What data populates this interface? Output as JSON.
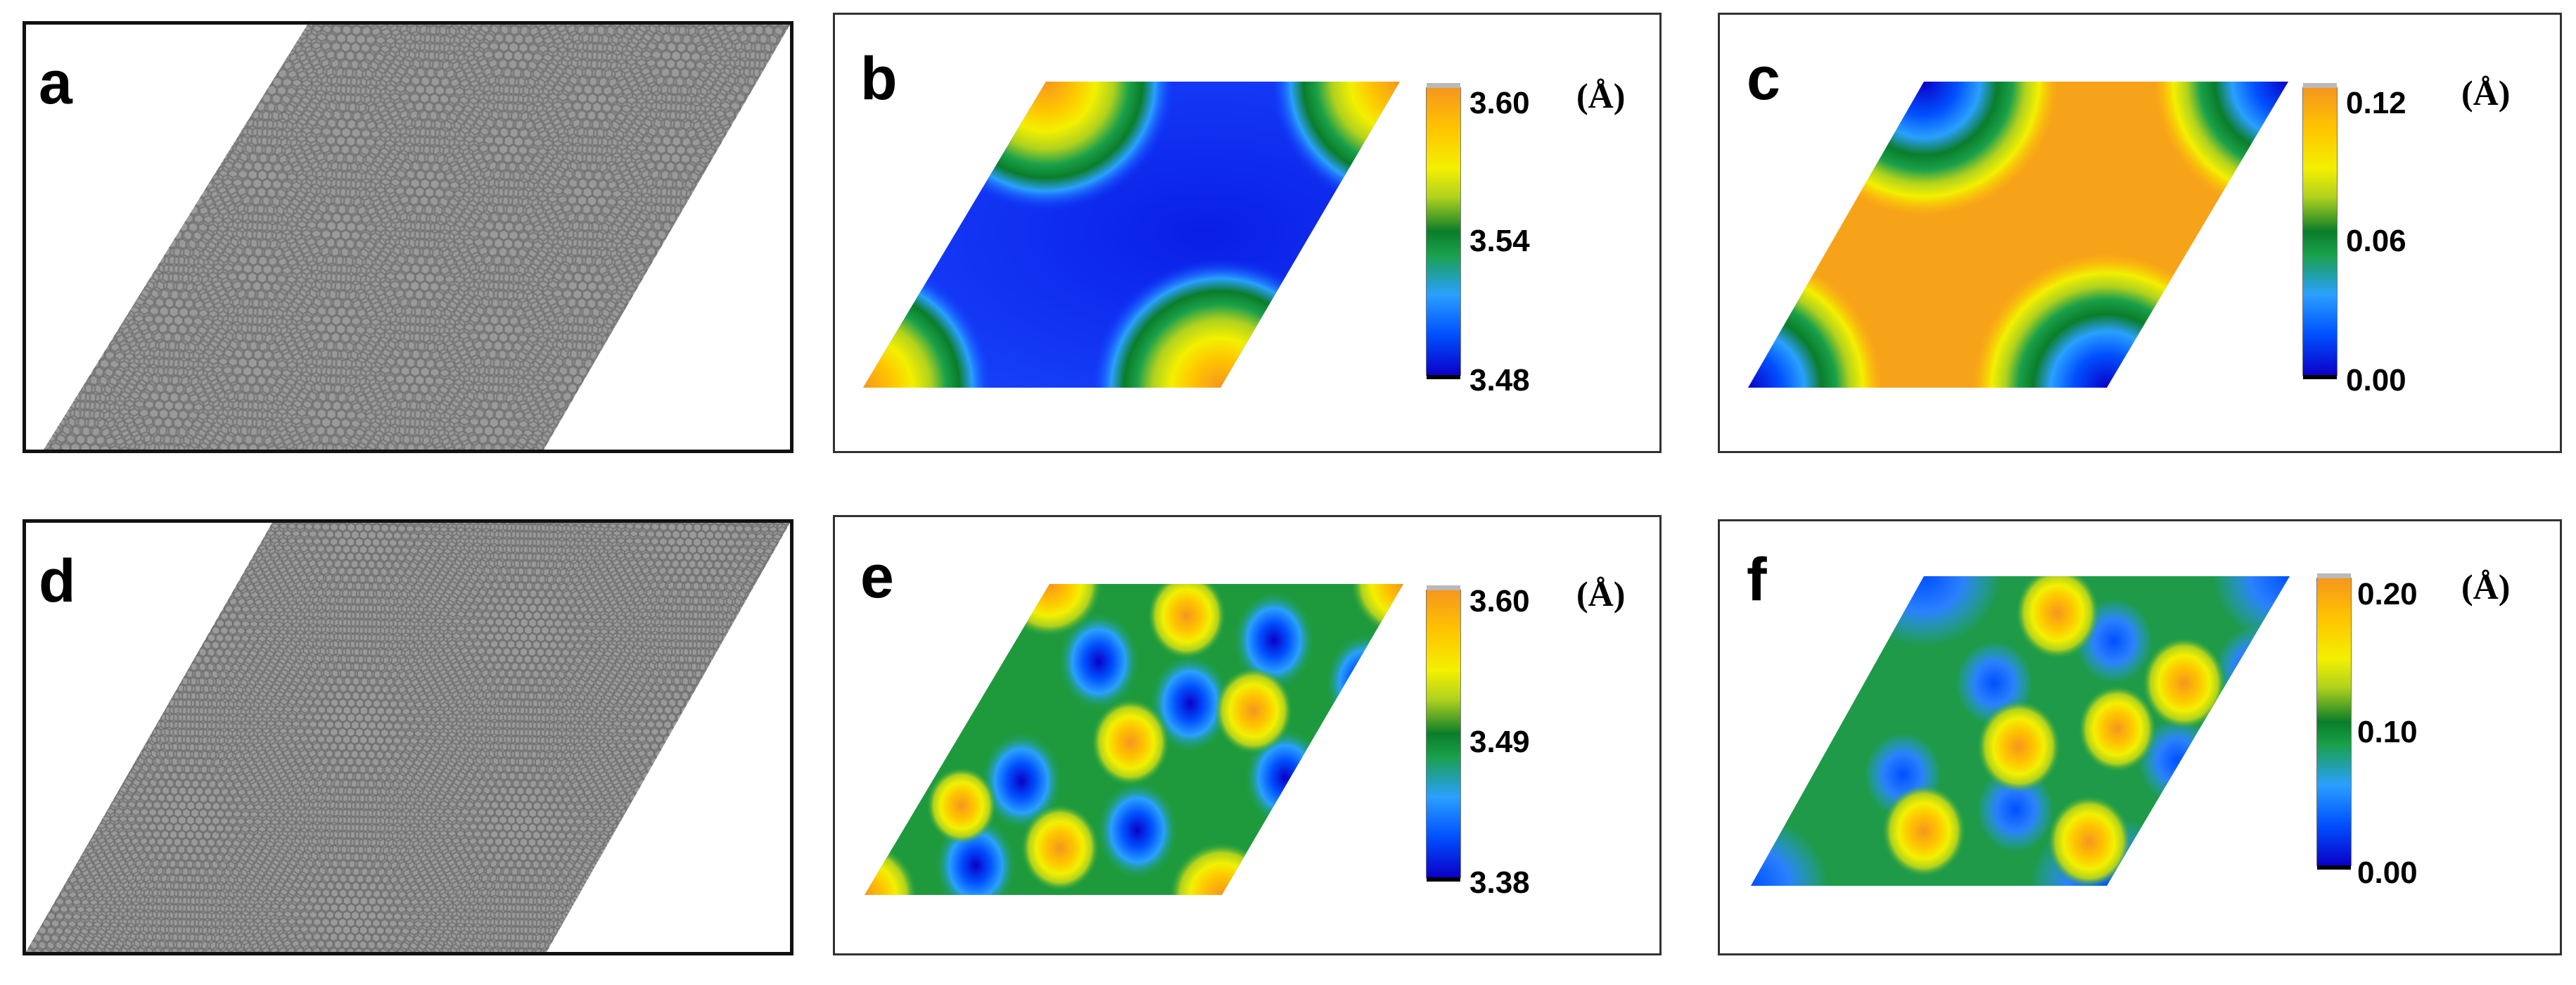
{
  "figure": {
    "panels": [
      {
        "id": "a",
        "label": "a",
        "kind": "lattice"
      },
      {
        "id": "b",
        "label": "b",
        "kind": "map",
        "colorbar": {
          "max": "3.60",
          "mid": "3.54",
          "min": "3.48",
          "unit": "(Å)"
        }
      },
      {
        "id": "c",
        "label": "c",
        "kind": "map",
        "colorbar": {
          "max": "0.12",
          "mid": "0.06",
          "min": "0.00",
          "unit": "(Å)"
        }
      },
      {
        "id": "d",
        "label": "d",
        "kind": "lattice"
      },
      {
        "id": "e",
        "label": "e",
        "kind": "map",
        "colorbar": {
          "max": "3.60",
          "mid": "3.49",
          "min": "3.38",
          "unit": "(Å)"
        }
      },
      {
        "id": "f",
        "label": "f",
        "kind": "map",
        "colorbar": {
          "max": "0.20",
          "mid": "0.10",
          "min": "0.00",
          "unit": "(Å)"
        }
      }
    ],
    "colormap": [
      "#0a00c8",
      "#0050ff",
      "#2aa0ff",
      "#1aa04a",
      "#0a7d2a",
      "#b0d21e",
      "#f3f000",
      "#ffc400",
      "#f5961e"
    ],
    "atom_color": "#888888"
  }
}
